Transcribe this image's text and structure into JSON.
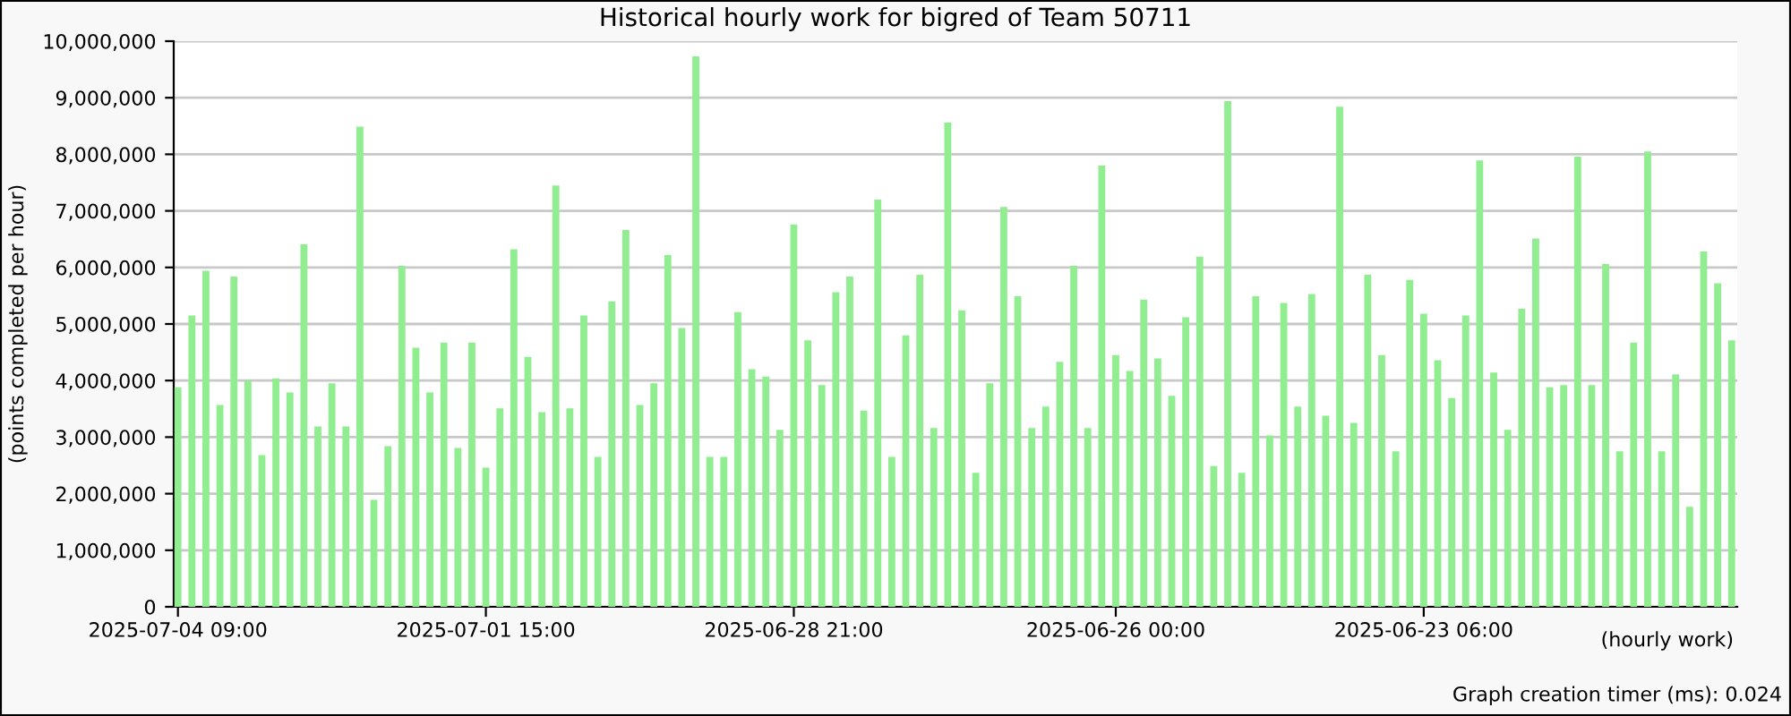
{
  "chart_data": {
    "type": "bar",
    "title": "Historical hourly work for bigred of Team 50711",
    "ylabel": "(points completed per hour)",
    "xlabel": "(hourly work)",
    "annotations": [
      "Graph creation timer (ms): 0.024"
    ],
    "categories": [
      "2025-07-04 09:00",
      null,
      null,
      null,
      null,
      null,
      null,
      null,
      null,
      null,
      null,
      null,
      null,
      null,
      null,
      null,
      null,
      null,
      null,
      null,
      null,
      null,
      "2025-07-01 15:00",
      null,
      null,
      null,
      null,
      null,
      null,
      null,
      null,
      null,
      null,
      null,
      null,
      null,
      null,
      null,
      null,
      null,
      null,
      null,
      null,
      null,
      "2025-06-28 21:00",
      null,
      null,
      null,
      null,
      null,
      null,
      null,
      null,
      null,
      null,
      null,
      null,
      null,
      null,
      null,
      null,
      null,
      null,
      null,
      null,
      null,
      null,
      "2025-06-26 00:00",
      null,
      null,
      null,
      null,
      null,
      null,
      null,
      null,
      null,
      null,
      null,
      null,
      null,
      null,
      null,
      null,
      null,
      null,
      null,
      null,
      null,
      "2025-06-23 06:00",
      null,
      null,
      null,
      null,
      null,
      null,
      null,
      null,
      null,
      null,
      null,
      null,
      null,
      null,
      null,
      null,
      null,
      null,
      null,
      null,
      null,
      null
    ],
    "values": [
      3880000,
      5150000,
      5940000,
      3570000,
      5840000,
      4000000,
      2680000,
      4040000,
      3790000,
      6410000,
      3190000,
      3950000,
      3190000,
      8490000,
      1890000,
      2840000,
      6030000,
      4580000,
      3790000,
      4670000,
      2810000,
      4670000,
      2460000,
      3510000,
      6320000,
      4420000,
      3440000,
      7450000,
      3510000,
      5150000,
      2650000,
      5400000,
      6660000,
      3570000,
      3950000,
      6220000,
      4930000,
      9730000,
      2650000,
      2650000,
      5210000,
      4200000,
      4070000,
      3130000,
      6760000,
      4710000,
      3920000,
      5560000,
      5840000,
      3470000,
      7200000,
      2650000,
      4800000,
      5870000,
      3160000,
      8560000,
      5240000,
      2370000,
      3950000,
      7070000,
      5490000,
      3160000,
      3540000,
      4330000,
      6030000,
      3160000,
      7800000,
      4450000,
      4170000,
      5430000,
      4390000,
      3730000,
      5120000,
      6190000,
      2490000,
      8940000,
      2370000,
      5490000,
      3030000,
      5370000,
      3540000,
      5530000,
      3380000,
      8840000,
      3250000,
      5870000,
      4450000,
      2750000,
      5780000,
      5180000,
      4360000,
      3690000,
      5150000,
      7890000,
      4140000,
      3130000,
      5270000,
      6510000,
      3880000,
      3920000,
      7960000,
      3920000,
      6060000,
      2750000,
      4670000,
      8050000,
      2750000,
      4110000,
      1770000,
      6280000,
      5720000,
      4710000
    ],
    "color": "#90ee90",
    "ylim": [
      0,
      10000000
    ],
    "yticks": [
      {
        "value": 0,
        "label": "0"
      },
      {
        "value": 1000000,
        "label": "1,000,000"
      },
      {
        "value": 2000000,
        "label": "2,000,000"
      },
      {
        "value": 3000000,
        "label": "3,000,000"
      },
      {
        "value": 4000000,
        "label": "4,000,000"
      },
      {
        "value": 5000000,
        "label": "5,000,000"
      },
      {
        "value": 6000000,
        "label": "6,000,000"
      },
      {
        "value": 7000000,
        "label": "7,000,000"
      },
      {
        "value": 8000000,
        "label": "8,000,000"
      },
      {
        "value": 9000000,
        "label": "9,000,000"
      },
      {
        "value": 10000000,
        "label": "10,000,000"
      }
    ],
    "grid": "y",
    "legend": false
  }
}
